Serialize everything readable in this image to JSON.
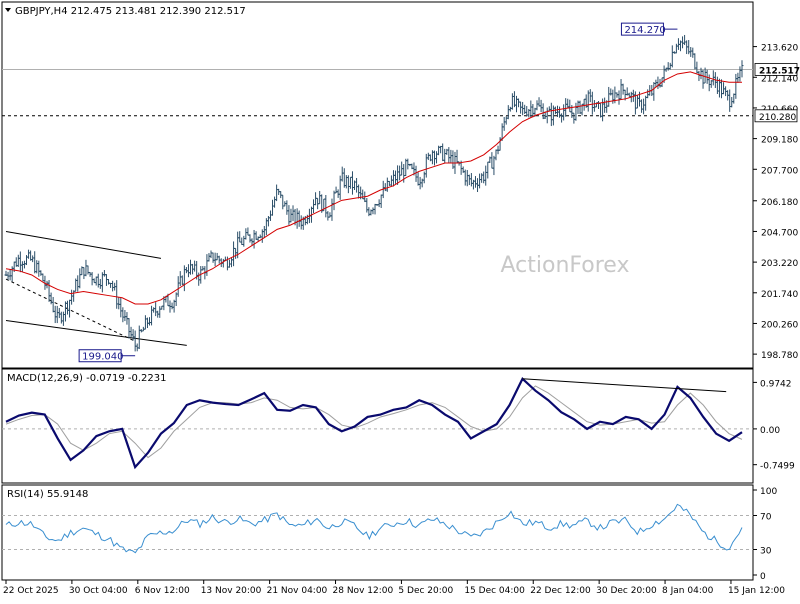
{
  "header": {
    "symbol_line": "GBPJPY,H4  212.475 213.481 212.390 212.517",
    "macd_label": "MACD(12,26,9) -0.0719 -0.2231",
    "rsi_label": "RSI(14) 55.9148"
  },
  "watermark": "ActionForex",
  "price_labels": {
    "current": "212.517",
    "level": "210.280",
    "high": "214.270",
    "low": "199.040"
  },
  "colors": {
    "price_bars": "#2b4e68",
    "moving_average": "#d40000",
    "macd_line": "#0a0a6e",
    "macd_signal": "#a0a0a0",
    "rsi_line": "#3a8fd0",
    "watermark": "#c8c8c8"
  },
  "chart_data": [
    {
      "type": "bar",
      "title": "GBPJPY, H4",
      "ohlc_last": {
        "open": 212.475,
        "high": 213.481,
        "low": 212.39,
        "close": 212.517
      },
      "y_ticks": [
        "213.620",
        "212.140",
        "210.660",
        "209.180",
        "207.700",
        "206.180",
        "204.700",
        "203.220",
        "201.740",
        "200.260",
        "198.780"
      ],
      "ylim": [
        198.4,
        215.0
      ],
      "x_ticks": [
        "22 Oct 2025",
        "30 Oct 04:00",
        "6 Nov 12:00",
        "13 Nov 20:00",
        "21 Nov 04:00",
        "28 Nov 12:00",
        "5 Dec 20:00",
        "15 Dec 04:00",
        "22 Dec 12:00",
        "30 Dec 20:00",
        "8 Jan 04:00",
        "15 Jan 12:00"
      ],
      "close_path": [
        202.6,
        203.4,
        203.3,
        202.2,
        200.4,
        201.5,
        202.9,
        202.4,
        202.5,
        200.7,
        199.2,
        200.4,
        201.2,
        201.4,
        203.0,
        202.6,
        203.5,
        203.2,
        204.1,
        204.5,
        204.8,
        206.6,
        205.4,
        205.2,
        206.4,
        205.6,
        207.2,
        206.9,
        205.7,
        206.4,
        207.2,
        207.8,
        207.2,
        208.6,
        208.4,
        207.9,
        207.0,
        207.4,
        208.5,
        211.0,
        210.5,
        210.8,
        210.3,
        210.6,
        210.4,
        211.1,
        210.5,
        211.3,
        211.6,
        210.7,
        211.4,
        212.3,
        214.0,
        213.3,
        212.1,
        211.9,
        211.0,
        212.4
      ],
      "moving_average_path": [
        202.9,
        202.8,
        202.6,
        202.2,
        201.9,
        201.7,
        201.8,
        201.7,
        201.6,
        201.5,
        201.2,
        201.2,
        201.4,
        201.8,
        202.2,
        202.6,
        202.9,
        203.3,
        203.6,
        204.0,
        204.4,
        204.8,
        205.0,
        205.3,
        205.6,
        205.9,
        206.2,
        206.3,
        206.4,
        206.7,
        206.9,
        207.3,
        207.6,
        207.8,
        208.0,
        208.0,
        208.1,
        208.4,
        208.9,
        209.5,
        210.0,
        210.3,
        210.5,
        210.6,
        210.7,
        210.8,
        210.9,
        211.0,
        211.1,
        211.3,
        211.5,
        212.0,
        212.3,
        212.4,
        212.2,
        212.0,
        211.9,
        211.9
      ],
      "annotations": [
        {
          "label": "214.270",
          "x_index": 52,
          "value": 214.27
        },
        {
          "label": "199.040",
          "x_index": 10,
          "value": 199.04
        }
      ],
      "horizontal_lines": [
        {
          "value": 212.517,
          "style": "solid"
        },
        {
          "value": 210.28,
          "style": "dashed"
        }
      ],
      "trendlines": [
        {
          "from": {
            "x_index": 0,
            "value": 204.7
          },
          "to": {
            "x_index": 12,
            "value": 203.4
          }
        },
        {
          "from": {
            "x_index": 0,
            "value": 200.4
          },
          "to": {
            "x_index": 14,
            "value": 199.2
          }
        },
        {
          "from": {
            "x_index": 0,
            "value": 202.4
          },
          "to": {
            "x_index": 10,
            "value": 199.4
          },
          "style": "dashed"
        }
      ]
    },
    {
      "type": "line",
      "title": "MACD(12,26,9)",
      "y_ticks": [
        "0.9742",
        "0.00",
        "-0.7499"
      ],
      "ylim": [
        -1.05,
        1.15
      ],
      "series": [
        {
          "name": "MACD",
          "values": [
            0.15,
            0.28,
            0.34,
            0.3,
            -0.2,
            -0.65,
            -0.45,
            -0.15,
            -0.05,
            0.0,
            -0.8,
            -0.5,
            -0.1,
            0.12,
            0.5,
            0.6,
            0.55,
            0.52,
            0.5,
            0.62,
            0.75,
            0.4,
            0.38,
            0.5,
            0.45,
            0.1,
            -0.05,
            0.05,
            0.25,
            0.3,
            0.4,
            0.45,
            0.6,
            0.5,
            0.3,
            0.15,
            -0.2,
            -0.05,
            0.1,
            0.5,
            1.05,
            0.8,
            0.6,
            0.35,
            0.2,
            0.0,
            0.15,
            0.1,
            0.25,
            0.2,
            0.0,
            0.3,
            0.88,
            0.65,
            0.25,
            -0.1,
            -0.25,
            -0.07
          ]
        },
        {
          "name": "Signal",
          "values": [
            0.1,
            0.2,
            0.28,
            0.3,
            0.1,
            -0.3,
            -0.45,
            -0.3,
            -0.1,
            -0.05,
            -0.3,
            -0.6,
            -0.4,
            -0.05,
            0.2,
            0.45,
            0.55,
            0.55,
            0.52,
            0.55,
            0.65,
            0.6,
            0.45,
            0.42,
            0.45,
            0.3,
            0.08,
            0.02,
            0.12,
            0.25,
            0.32,
            0.4,
            0.5,
            0.55,
            0.45,
            0.25,
            0.05,
            -0.05,
            0.0,
            0.25,
            0.65,
            0.9,
            0.75,
            0.55,
            0.35,
            0.15,
            0.08,
            0.1,
            0.15,
            0.2,
            0.12,
            0.15,
            0.5,
            0.75,
            0.5,
            0.15,
            -0.1,
            -0.22
          ]
        }
      ],
      "trendlines": [
        {
          "from": {
            "x_index": 40,
            "value": 1.05
          },
          "to": {
            "x_index": 55,
            "value": 0.78
          }
        }
      ]
    },
    {
      "type": "line",
      "title": "RSI(14)",
      "y_ticks": [
        "100",
        "70",
        "30",
        "0"
      ],
      "ylim": [
        0,
        100
      ],
      "levels": [
        70,
        30
      ],
      "series": [
        {
          "name": "RSI",
          "values": [
            58,
            62,
            60,
            45,
            40,
            50,
            55,
            48,
            42,
            30,
            25,
            45,
            50,
            52,
            65,
            60,
            68,
            62,
            66,
            60,
            64,
            72,
            58,
            58,
            66,
            55,
            63,
            58,
            45,
            55,
            60,
            64,
            58,
            66,
            60,
            52,
            44,
            50,
            62,
            75,
            60,
            62,
            56,
            60,
            58,
            64,
            55,
            62,
            64,
            50,
            60,
            66,
            82,
            70,
            50,
            40,
            32,
            56
          ]
        }
      ]
    }
  ]
}
